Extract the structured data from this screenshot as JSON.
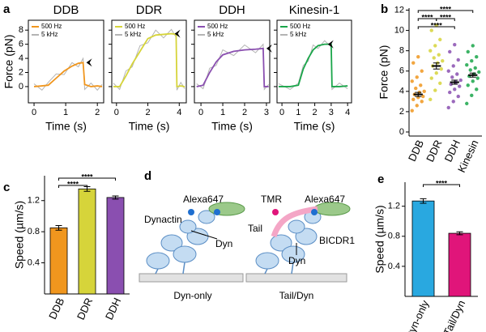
{
  "panel_labels": [
    "a",
    "b",
    "c",
    "d",
    "e"
  ],
  "chart_data": [
    {
      "type": "line",
      "title": "DDB",
      "xlabel": "Time (s)",
      "ylabel": "Force (pN)",
      "x": [
        0,
        0.25,
        0.45,
        0.7,
        0.95,
        1.2,
        1.4,
        1.55,
        1.6,
        1.8,
        2.0,
        2.15
      ],
      "series": [
        {
          "name": "500 Hz",
          "color": "#f0961e",
          "values": [
            0,
            0.1,
            0.2,
            1.2,
            2.2,
            2.9,
            3.3,
            3.4,
            0.3,
            0,
            0.1,
            0
          ]
        },
        {
          "name": "5 kHz",
          "color": "#b4b4b4",
          "values": [
            0.4,
            -0.5,
            0.6,
            1.8,
            1.7,
            3.4,
            2.8,
            4.0,
            -0.4,
            0.5,
            -0.5,
            0.3
          ]
        }
      ],
      "xlim": [
        -0.18,
        2.2
      ],
      "xticks": [
        0,
        1,
        2
      ],
      "ylim": [
        -2.3,
        9.4
      ],
      "yticks": [
        0,
        2,
        4,
        6,
        8
      ],
      "ytick_labels": true
    },
    {
      "type": "line",
      "title": "DDR",
      "xlabel": "Time (s)",
      "x": [
        -0.2,
        0.2,
        0.6,
        1.0,
        1.5,
        2.0,
        2.5,
        3.0,
        3.5,
        3.8,
        3.85,
        4.1,
        4.35
      ],
      "series": [
        {
          "name": "500 Hz",
          "color": "#d6d43a",
          "values": [
            0,
            0,
            1.5,
            3.2,
            5.0,
            6.8,
            7.3,
            7.4,
            7.5,
            7.4,
            0,
            0.1,
            0
          ]
        },
        {
          "name": "5 kHz",
          "color": "#b4b4b4",
          "values": [
            0.5,
            -0.4,
            2.2,
            2.8,
            5.8,
            6.2,
            8.0,
            6.9,
            8.1,
            7.0,
            -0.5,
            0.6,
            -0.3
          ]
        }
      ],
      "xlim": [
        -0.3,
        4.45
      ],
      "xticks": [
        0,
        2,
        4
      ],
      "ylim": [
        -2.3,
        9.4
      ],
      "yticks": [
        0,
        2,
        4,
        6,
        8
      ],
      "ytick_labels": false
    },
    {
      "type": "line",
      "title": "DDH",
      "xlabel": "Time (s)",
      "x": [
        -0.2,
        0.1,
        0.4,
        0.7,
        1.0,
        1.5,
        2.0,
        2.5,
        2.85,
        2.9,
        3.1
      ],
      "series": [
        {
          "name": "500 Hz",
          "color": "#8a4fb0",
          "values": [
            0,
            0.2,
            2.0,
            3.5,
            4.5,
            5.0,
            5.2,
            5.3,
            5.4,
            0,
            0
          ]
        },
        {
          "name": "5 kHz",
          "color": "#b4b4b4",
          "values": [
            0.4,
            -0.3,
            2.6,
            3.0,
            5.2,
            4.4,
            5.9,
            4.8,
            6.0,
            -0.4,
            0.3
          ]
        }
      ],
      "xlim": [
        -0.3,
        3.15
      ],
      "xticks": [
        0,
        1,
        2,
        3
      ],
      "ylim": [
        -2.3,
        9.4
      ],
      "yticks": [
        0,
        2,
        4,
        6,
        8
      ],
      "ytick_labels": false
    },
    {
      "type": "line",
      "title": "Kinesin-1",
      "xlabel": "Time (s)",
      "x": [
        -0.2,
        0.5,
        1.0,
        1.3,
        1.6,
        1.9,
        2.2,
        2.6,
        3.0,
        3.05,
        3.5,
        4.0
      ],
      "series": [
        {
          "name": "500 Hz",
          "color": "#1aa64a",
          "values": [
            0,
            0,
            0.2,
            2.5,
            4.0,
            5.2,
            5.8,
            6.0,
            6.0,
            0,
            0,
            0.1
          ]
        },
        {
          "name": "5 kHz",
          "color": "#b4b4b4",
          "values": [
            0.4,
            -0.4,
            0.5,
            3.0,
            3.6,
            5.9,
            5.4,
            6.5,
            5.6,
            -0.4,
            0.5,
            -0.3
          ]
        }
      ],
      "xlim": [
        -0.3,
        4.24
      ],
      "xticks": [
        0,
        1,
        2,
        3,
        4
      ],
      "ylim": [
        -2.3,
        9.4
      ],
      "yticks": [
        0,
        2,
        4,
        6,
        8
      ],
      "ytick_labels": false
    },
    {
      "type": "strip",
      "ylabel": "Force (pN)",
      "categories": [
        "DDB",
        "DDR",
        "DDH",
        "Kinesin"
      ],
      "colors": [
        "#f0961e",
        "#d6d43a",
        "#8a4fb0",
        "#1aa64a"
      ],
      "points": [
        [
          2.1,
          2.6,
          3.0,
          3.2,
          3.4,
          3.5,
          3.7,
          3.9,
          4.0,
          4.3,
          4.6,
          5.0,
          5.4,
          6.0,
          6.8,
          7.4
        ],
        [
          3.2,
          4.1,
          4.8,
          5.3,
          5.8,
          6.2,
          6.5,
          6.8,
          7.0,
          7.3,
          7.6,
          8.0,
          8.5,
          9.1,
          10.0,
          10.5
        ],
        [
          2.4,
          3.0,
          3.5,
          3.9,
          4.2,
          4.5,
          4.7,
          4.9,
          5.1,
          5.4,
          5.7,
          6.0,
          6.5,
          7.1,
          7.9,
          8.6
        ],
        [
          2.8,
          3.6,
          4.2,
          4.6,
          5.0,
          5.3,
          5.5,
          5.7,
          5.9,
          6.1,
          6.3,
          6.6,
          7.0,
          7.4,
          7.9,
          8.5
        ]
      ],
      "values": [
        3.7,
        6.5,
        4.9,
        5.6
      ],
      "errors": [
        0.2,
        0.3,
        0.2,
        0.2
      ],
      "ylim": [
        -0.4,
        12.2
      ],
      "yticks": [
        0,
        2,
        4,
        6,
        8,
        10,
        12
      ],
      "comparisons": [
        {
          "between": [
            0,
            3
          ],
          "label": "****"
        },
        {
          "between": [
            0,
            1
          ],
          "label": "****"
        },
        {
          "between": [
            1,
            2
          ],
          "label": "****"
        },
        {
          "between": [
            0,
            2
          ],
          "label": "****"
        }
      ]
    },
    {
      "type": "bar",
      "ylabel": "Speed (µm/s)",
      "categories": [
        "DDB",
        "DDR",
        "DDH"
      ],
      "colors": [
        "#f0961e",
        "#d6d43a",
        "#8a4fb0"
      ],
      "values": [
        0.85,
        1.35,
        1.24
      ],
      "errors": [
        0.03,
        0.03,
        0.02
      ],
      "ylim": [
        0,
        1.52
      ],
      "yticks": [
        0.4,
        0.8,
        1.2
      ],
      "comparisons": [
        {
          "between": [
            0,
            2
          ],
          "label": "****"
        },
        {
          "between": [
            0,
            1
          ],
          "label": "****"
        }
      ]
    },
    {
      "type": "bar",
      "ylabel": "Speed (µm/s)",
      "categories": [
        "Dyn-only",
        "Tail/Dyn"
      ],
      "colors": [
        "#29a8e0",
        "#e0157a"
      ],
      "values": [
        1.27,
        0.84
      ],
      "errors": [
        0.03,
        0.02
      ],
      "ylim": [
        0,
        1.52
      ],
      "yticks": [
        0.4,
        0.8,
        1.2
      ],
      "comparisons": [
        {
          "between": [
            0,
            1
          ],
          "label": "****"
        }
      ]
    }
  ],
  "diagram": {
    "left": {
      "labels": [
        "Alexa647",
        "Dynactin",
        "Dyn"
      ],
      "caption": "Dyn-only"
    },
    "right": {
      "labels": [
        "TMR",
        "Alexa647",
        "Tail",
        "BICDR1",
        "Dyn"
      ],
      "caption": "Tail/Dyn"
    }
  }
}
